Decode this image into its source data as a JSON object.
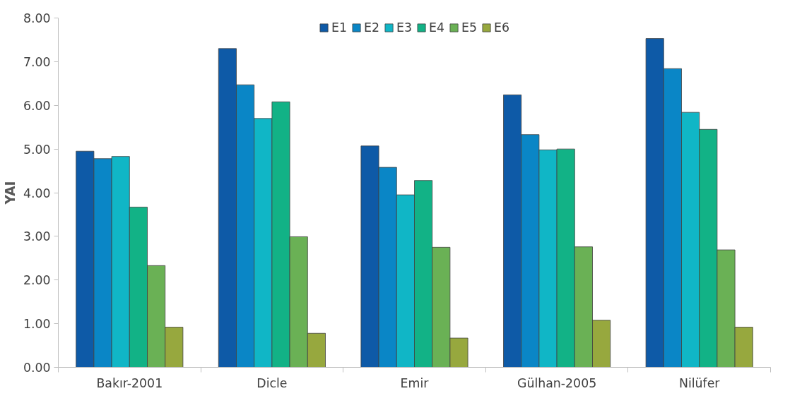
{
  "chart_data": {
    "type": "bar",
    "ylabel": "YAI",
    "categories": [
      "Bakır-2001",
      "Dicle",
      "Emir",
      "Gülhan-2005",
      "Nilüfer"
    ],
    "series": [
      {
        "name": "E1",
        "color": "#0e5aa7",
        "values": [
          4.95,
          7.3,
          5.07,
          6.24,
          7.53
        ]
      },
      {
        "name": "E2",
        "color": "#0a86c6",
        "values": [
          4.78,
          6.47,
          4.58,
          5.33,
          6.84
        ]
      },
      {
        "name": "E3",
        "color": "#10b6c6",
        "values": [
          4.83,
          5.7,
          3.95,
          4.98,
          5.84
        ]
      },
      {
        "name": "E4",
        "color": "#12b286",
        "values": [
          3.67,
          6.08,
          4.28,
          5.0,
          5.45
        ]
      },
      {
        "name": "E5",
        "color": "#6ab155",
        "values": [
          2.33,
          2.99,
          2.75,
          2.76,
          2.69
        ]
      },
      {
        "name": "E6",
        "color": "#97a83e",
        "values": [
          0.92,
          0.78,
          0.67,
          1.08,
          0.92
        ]
      }
    ],
    "ylim": [
      0,
      8
    ],
    "yticks": [
      {
        "value": 0,
        "label": "0.00"
      },
      {
        "value": 1,
        "label": "1.00"
      },
      {
        "value": 2,
        "label": "2.00"
      },
      {
        "value": 3,
        "label": "3.00"
      },
      {
        "value": 4,
        "label": "4.00"
      },
      {
        "value": 5,
        "label": "5.00"
      },
      {
        "value": 6,
        "label": "6.00"
      },
      {
        "value": 7,
        "label": "7.00"
      },
      {
        "value": 8,
        "label": "8.00"
      }
    ],
    "grid": false,
    "legend": "top"
  }
}
